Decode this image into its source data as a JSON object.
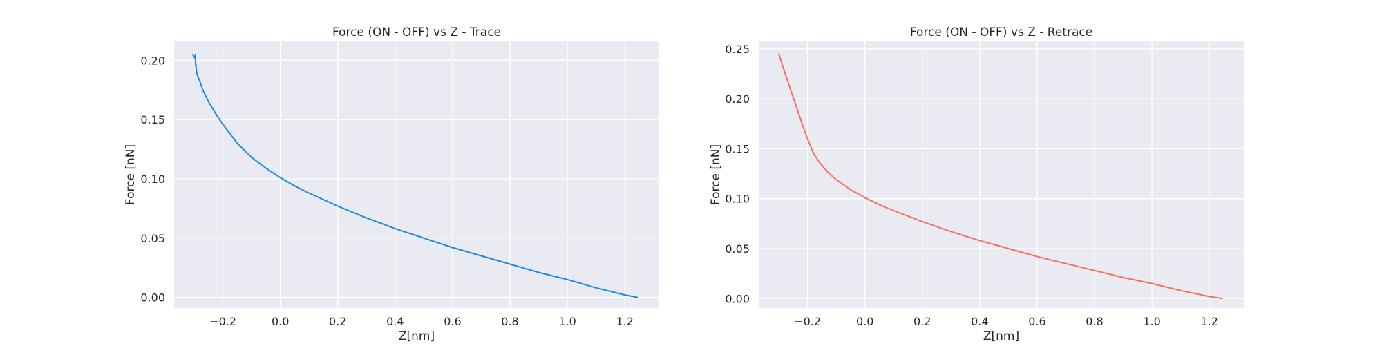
{
  "chart_data": [
    {
      "type": "line",
      "title": "Force (ON - OFF) vs Z - Trace",
      "xlabel": "Z[nm]",
      "ylabel": "Force [nN]",
      "xlim": [
        -0.37,
        1.32
      ],
      "ylim": [
        -0.009,
        0.216
      ],
      "xticks": [
        "−0.2",
        "0.0",
        "0.2",
        "0.4",
        "0.6",
        "0.8",
        "1.0",
        "1.2"
      ],
      "xtick_values": [
        -0.2,
        0.0,
        0.2,
        0.4,
        0.6,
        0.8,
        1.0,
        1.2
      ],
      "yticks": [
        "0.00",
        "0.05",
        "0.10",
        "0.15",
        "0.20"
      ],
      "ytick_values": [
        0.0,
        0.05,
        0.1,
        0.15,
        0.2
      ],
      "grid": true,
      "series": [
        {
          "color": "#1e88e5",
          "x": [
            -0.305,
            -0.3,
            -0.298,
            -0.296,
            -0.295,
            -0.294,
            -0.293,
            -0.29,
            -0.28,
            -0.27,
            -0.25,
            -0.22,
            -0.2,
            -0.15,
            -0.1,
            -0.05,
            0.0,
            0.05,
            0.1,
            0.2,
            0.3,
            0.4,
            0.5,
            0.6,
            0.7,
            0.8,
            0.9,
            1.0,
            1.1,
            1.2,
            1.245
          ],
          "y": [
            0.205,
            0.203,
            0.202,
            0.205,
            0.196,
            0.197,
            0.192,
            0.188,
            0.182,
            0.175,
            0.165,
            0.153,
            0.146,
            0.13,
            0.118,
            0.109,
            0.101,
            0.094,
            0.088,
            0.077,
            0.067,
            0.058,
            0.05,
            0.042,
            0.035,
            0.028,
            0.021,
            0.015,
            0.008,
            0.002,
            0.0
          ]
        }
      ]
    },
    {
      "type": "line",
      "title": "Force (ON - OFF) vs Z - Retrace",
      "xlabel": "Z[nm]",
      "ylabel": "Force [nN]",
      "xlim": [
        -0.37,
        1.32
      ],
      "ylim": [
        -0.0095,
        0.2575
      ],
      "xticks": [
        "−0.2",
        "0.0",
        "0.2",
        "0.4",
        "0.6",
        "0.8",
        "1.0",
        "1.2"
      ],
      "xtick_values": [
        -0.2,
        0.0,
        0.2,
        0.4,
        0.6,
        0.8,
        1.0,
        1.2
      ],
      "yticks": [
        "0.00",
        "0.05",
        "0.10",
        "0.15",
        "0.20",
        "0.25"
      ],
      "ytick_values": [
        0.0,
        0.05,
        0.1,
        0.15,
        0.2,
        0.25
      ],
      "grid": true,
      "series": [
        {
          "color": "#fa6e5a",
          "x": [
            -0.3,
            -0.28,
            -0.26,
            -0.24,
            -0.22,
            -0.2,
            -0.18,
            -0.16,
            -0.14,
            -0.12,
            -0.1,
            -0.05,
            0.0,
            0.05,
            0.1,
            0.2,
            0.3,
            0.4,
            0.5,
            0.6,
            0.7,
            0.8,
            0.9,
            1.0,
            1.1,
            1.2,
            1.245
          ],
          "y": [
            0.245,
            0.227,
            0.21,
            0.193,
            0.176,
            0.16,
            0.146,
            0.137,
            0.13,
            0.124,
            0.119,
            0.109,
            0.101,
            0.094,
            0.088,
            0.077,
            0.067,
            0.058,
            0.05,
            0.042,
            0.035,
            0.028,
            0.021,
            0.015,
            0.008,
            0.002,
            0.0
          ]
        }
      ]
    }
  ]
}
